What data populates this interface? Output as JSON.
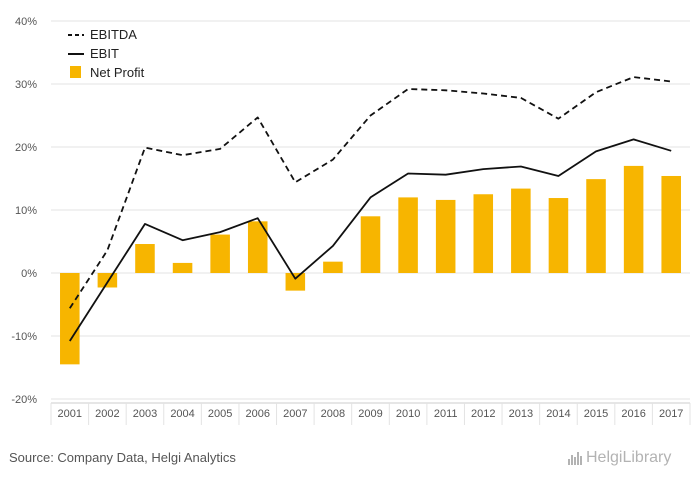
{
  "chart_data": {
    "type": "bar",
    "categories": [
      "2001",
      "2002",
      "2003",
      "2004",
      "2005",
      "2006",
      "2007",
      "2008",
      "2009",
      "2010",
      "2011",
      "2012",
      "2013",
      "2014",
      "2015",
      "2016",
      "2017"
    ],
    "ylim": [
      -20,
      40
    ],
    "yticks": [
      -20,
      -10,
      0,
      10,
      20,
      30,
      40
    ],
    "ytick_labels": [
      "-20%",
      "-10%",
      "0%",
      "10%",
      "20%",
      "30%",
      "40%"
    ],
    "grid": true,
    "legend_position": "top-left",
    "series": [
      {
        "name": "EBITDA",
        "kind": "line",
        "style": "dashed",
        "color": "#111111",
        "values": [
          -5.6,
          3.6,
          19.9,
          18.7,
          19.7,
          24.7,
          14.4,
          18.0,
          25.0,
          29.2,
          29.0,
          28.5,
          27.8,
          24.5,
          28.7,
          31.1,
          30.4
        ]
      },
      {
        "name": "EBIT",
        "kind": "line",
        "style": "solid",
        "color": "#111111",
        "values": [
          -10.8,
          -1.5,
          7.8,
          5.2,
          6.5,
          8.7,
          -0.9,
          4.3,
          12.0,
          15.8,
          15.6,
          16.5,
          16.9,
          15.4,
          19.3,
          21.2,
          19.4
        ]
      },
      {
        "name": "Net Profit",
        "kind": "bar",
        "color": "#f7b500",
        "values": [
          -14.5,
          -2.3,
          4.6,
          1.6,
          6.1,
          8.2,
          -2.8,
          1.8,
          9.0,
          12.0,
          11.6,
          12.5,
          13.4,
          11.9,
          14.9,
          17.0,
          15.4
        ]
      }
    ]
  },
  "footer": {
    "source": "Source: Company Data, Helgi Analytics",
    "brand": "HelgiLibrary"
  }
}
